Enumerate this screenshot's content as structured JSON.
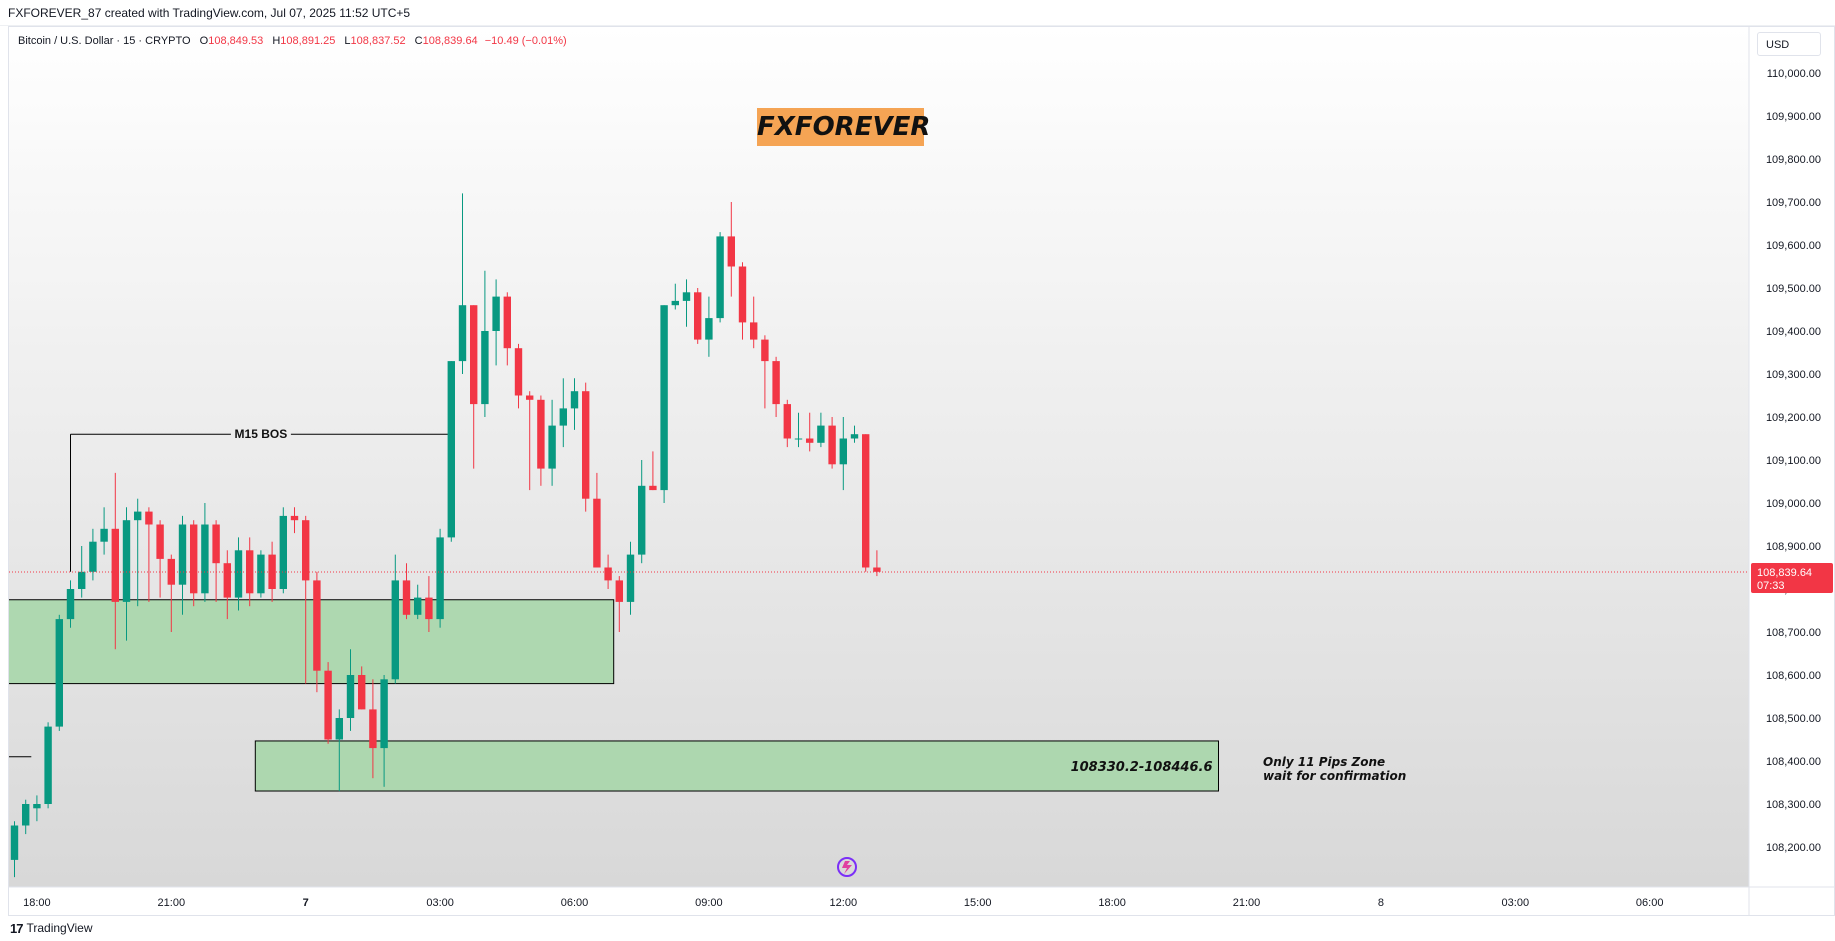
{
  "header": {
    "text": "FXFOREVER_87 created with TradingView.com, Jul 07, 2025 11:52 UTC+5"
  },
  "legend": {
    "symbol": "Bitcoin / U.S. Dollar · 15 · CRYPTO",
    "o_label": "O",
    "o_value": "108,849.53",
    "h_label": "H",
    "h_value": "108,891.25",
    "l_label": "L",
    "l_value": "108,837.52",
    "c_label": "C",
    "c_value": "108,839.64",
    "change": "−10.49 (−0.01%)"
  },
  "currency_button": "USD",
  "brand_label": "FXFOREVER",
  "footer": {
    "brand": "TradingView",
    "logo_glyph": "17"
  },
  "colors": {
    "up": "#089981",
    "down": "#f23645",
    "zone_fill": "#a5d6a7",
    "brand_bg": "#f5a454",
    "price_line": "#f23645"
  },
  "chart_data": {
    "type": "candlestick",
    "symbol": "BTCUSD",
    "timeframe": "15",
    "ylim": [
      108100,
      110100
    ],
    "y_ticks": [
      108200,
      108300,
      108400,
      108500,
      108600,
      108700,
      108800,
      108900,
      109000,
      109100,
      109200,
      109300,
      109400,
      109500,
      109600,
      109700,
      109800,
      109900,
      110000
    ],
    "y_tick_labels": [
      "108,200.00",
      "108,300.00",
      "108,400.00",
      "108,500.00",
      "108,600.00",
      "108,700.00",
      "108,800.00",
      "108,900.00",
      "109,000.00",
      "109,100.00",
      "109,200.00",
      "109,300.00",
      "109,400.00",
      "109,500.00",
      "109,600.00",
      "109,700.00",
      "109,800.00",
      "109,900.00",
      "110,000.00"
    ],
    "x_ticks": [
      {
        "index": 2,
        "label": "18:00",
        "bold": false
      },
      {
        "index": 14,
        "label": "21:00",
        "bold": false
      },
      {
        "index": 26,
        "label": "7",
        "bold": true
      },
      {
        "index": 38,
        "label": "03:00",
        "bold": false
      },
      {
        "index": 50,
        "label": "06:00",
        "bold": false
      },
      {
        "index": 62,
        "label": "09:00",
        "bold": false
      },
      {
        "index": 74,
        "label": "12:00",
        "bold": false
      },
      {
        "index": 86,
        "label": "15:00",
        "bold": false
      },
      {
        "index": 98,
        "label": "18:00",
        "bold": false
      },
      {
        "index": 110,
        "label": "21:00",
        "bold": false
      },
      {
        "index": 122,
        "label": "8",
        "bold": false
      },
      {
        "index": 134,
        "label": "03:00",
        "bold": false
      },
      {
        "index": 146,
        "label": "06:00",
        "bold": false
      }
    ],
    "candles": [
      [
        108170,
        108260,
        108130,
        108250
      ],
      [
        108250,
        108310,
        108230,
        108300
      ],
      [
        108290,
        108320,
        108260,
        108300
      ],
      [
        108300,
        108490,
        108290,
        108480
      ],
      [
        108480,
        108740,
        108470,
        108730
      ],
      [
        108730,
        108820,
        108710,
        108800
      ],
      [
        108800,
        108900,
        108780,
        108840
      ],
      [
        108840,
        108940,
        108820,
        108910
      ],
      [
        108910,
        108990,
        108880,
        108940
      ],
      [
        108940,
        109070,
        108660,
        108770
      ],
      [
        108770,
        108990,
        108680,
        108960
      ],
      [
        108960,
        109010,
        108760,
        108980
      ],
      [
        108980,
        108990,
        108770,
        108950
      ],
      [
        108950,
        108960,
        108780,
        108870
      ],
      [
        108870,
        108880,
        108700,
        108810
      ],
      [
        108810,
        108970,
        108740,
        108950
      ],
      [
        108950,
        108960,
        108760,
        108790
      ],
      [
        108790,
        109000,
        108770,
        108950
      ],
      [
        108950,
        108960,
        108770,
        108860
      ],
      [
        108860,
        108890,
        108730,
        108780
      ],
      [
        108780,
        108920,
        108750,
        108890
      ],
      [
        108890,
        108920,
        108760,
        108790
      ],
      [
        108790,
        108890,
        108780,
        108880
      ],
      [
        108880,
        108910,
        108770,
        108800
      ],
      [
        108800,
        108990,
        108790,
        108970
      ],
      [
        108970,
        108990,
        108930,
        108960
      ],
      [
        108960,
        108970,
        108580,
        108820
      ],
      [
        108820,
        108840,
        108560,
        108610
      ],
      [
        108610,
        108630,
        108440,
        108450
      ],
      [
        108450,
        108520,
        108330,
        108500
      ],
      [
        108500,
        108660,
        108470,
        108600
      ],
      [
        108600,
        108620,
        108520,
        108520
      ],
      [
        108520,
        108590,
        108360,
        108430
      ],
      [
        108430,
        108600,
        108340,
        108590
      ],
      [
        108590,
        108880,
        108580,
        108820
      ],
      [
        108820,
        108860,
        108730,
        108740
      ],
      [
        108740,
        108810,
        108730,
        108780
      ],
      [
        108780,
        108830,
        108700,
        108730
      ],
      [
        108730,
        108940,
        108710,
        108920
      ],
      [
        108920,
        109330,
        108910,
        109330
      ],
      [
        109330,
        109720,
        109300,
        109460
      ],
      [
        109460,
        109460,
        109080,
        109230
      ],
      [
        109230,
        109540,
        109200,
        109400
      ],
      [
        109400,
        109520,
        109320,
        109480
      ],
      [
        109480,
        109490,
        109320,
        109360
      ],
      [
        109360,
        109370,
        109220,
        109250
      ],
      [
        109250,
        109260,
        109030,
        109240
      ],
      [
        109240,
        109250,
        109040,
        109080
      ],
      [
        109080,
        109240,
        109040,
        109180
      ],
      [
        109180,
        109290,
        109130,
        109220
      ],
      [
        109220,
        109290,
        109170,
        109260
      ],
      [
        109260,
        109280,
        108980,
        109010
      ],
      [
        109010,
        109070,
        108850,
        108850
      ],
      [
        108850,
        108880,
        108800,
        108820
      ],
      [
        108820,
        108830,
        108700,
        108770
      ],
      [
        108770,
        108910,
        108740,
        108880
      ],
      [
        108880,
        109100,
        108860,
        109040
      ],
      [
        109040,
        109120,
        109030,
        109030
      ],
      [
        109030,
        109460,
        109000,
        109460
      ],
      [
        109460,
        109510,
        109450,
        109470
      ],
      [
        109470,
        109520,
        109410,
        109490
      ],
      [
        109490,
        109500,
        109370,
        109380
      ],
      [
        109380,
        109480,
        109340,
        109430
      ],
      [
        109430,
        109630,
        109420,
        109620
      ],
      [
        109620,
        109700,
        109480,
        109550
      ],
      [
        109550,
        109560,
        109380,
        109420
      ],
      [
        109420,
        109480,
        109360,
        109380
      ],
      [
        109380,
        109390,
        109220,
        109330
      ],
      [
        109330,
        109340,
        109200,
        109230
      ],
      [
        109230,
        109240,
        109130,
        109150
      ],
      [
        109150,
        109210,
        109130,
        109150
      ],
      [
        109150,
        109210,
        109120,
        109140
      ],
      [
        109140,
        109210,
        109130,
        109180
      ],
      [
        109180,
        109200,
        109080,
        109090
      ],
      [
        109090,
        109200,
        109030,
        109150
      ],
      [
        109150,
        109180,
        109140,
        109160
      ],
      [
        109160,
        109160,
        108840,
        108850
      ],
      [
        108850,
        108890,
        108830,
        108840
      ]
    ],
    "last_price": 108839.64,
    "last_price_label": "108,839.64",
    "countdown": "07:33",
    "zones": [
      {
        "from_index": -1.2,
        "to_index": 53.5,
        "y_low": 108580,
        "y_high": 108775
      },
      {
        "from_index": 21.5,
        "to_index": 107.5,
        "y_low": 108330.2,
        "y_high": 108446.6,
        "label": "108330.2-108446.6"
      }
    ],
    "bos": {
      "label": "M15 BOS",
      "price": 109160,
      "from_index": 5,
      "to_index": 39
    },
    "annotations": [
      "Only 11 Pips Zone",
      "wait for confirmation"
    ],
    "left_marker_price": 108410
  }
}
